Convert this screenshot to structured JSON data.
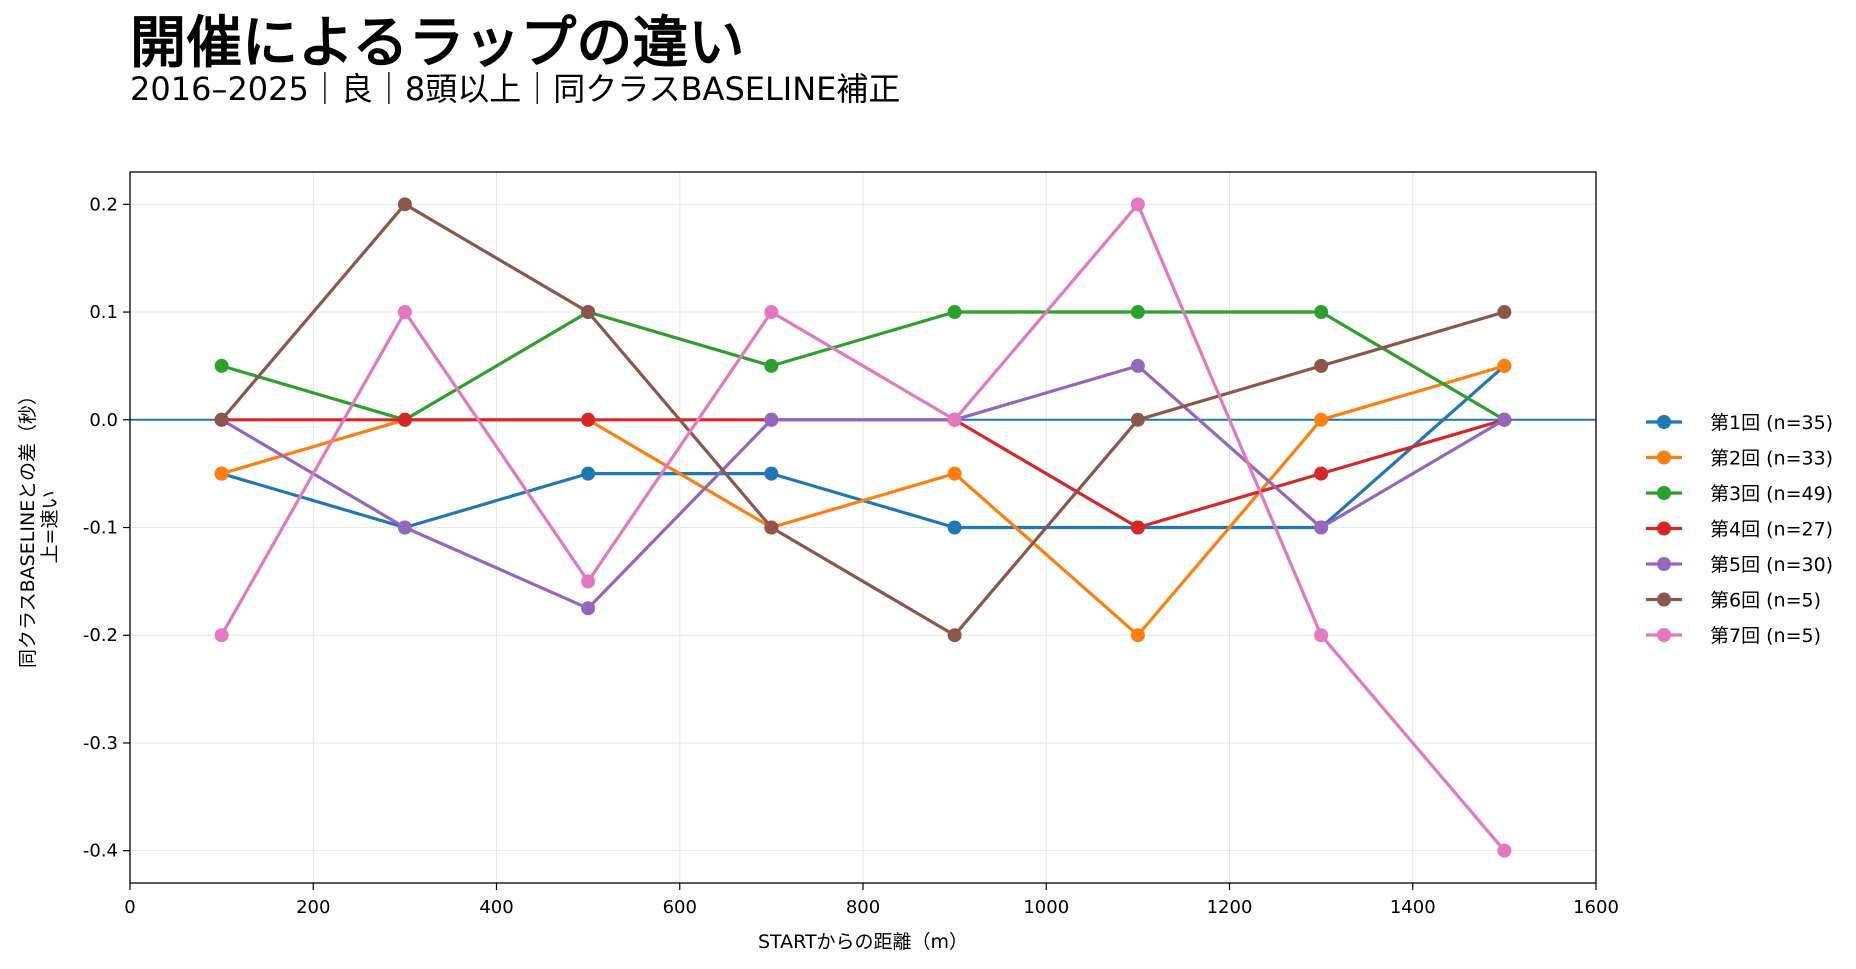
{
  "title": "開催によるラップの違い",
  "subtitle": "2016–2025｜良｜8頭以上｜同クラスBASELINE補正",
  "chart_data": {
    "type": "line",
    "xlabel": "STARTからの距離（m）",
    "ylabel": "同クラスBASELINEとの差（秒）",
    "ylabel2": "上=速い",
    "xlim": [
      0,
      1600
    ],
    "ylim": [
      -0.43,
      0.23
    ],
    "xticks": [
      0,
      200,
      400,
      600,
      800,
      1000,
      1200,
      1400,
      1600
    ],
    "yticks": [
      -0.4,
      -0.3,
      -0.2,
      -0.1,
      0.0,
      0.1,
      0.2
    ],
    "ytick_labels": [
      "-0.4",
      "-0.3",
      "-0.2",
      "-0.1",
      "0.0",
      "0.1",
      "0.2"
    ],
    "grid": true,
    "reference_line": 0.0,
    "legend_position": "right",
    "x": [
      100,
      300,
      500,
      700,
      900,
      1100,
      1300,
      1500
    ],
    "series": [
      {
        "name": "第1回 (n=35)",
        "color": "#1f77b4",
        "values": [
          -0.05,
          -0.1,
          -0.05,
          -0.05,
          -0.1,
          -0.1,
          -0.1,
          0.05
        ]
      },
      {
        "name": "第2回 (n=33)",
        "color": "#ff7f0e",
        "values": [
          -0.05,
          0.0,
          0.0,
          -0.1,
          -0.05,
          -0.2,
          0.0,
          0.05
        ]
      },
      {
        "name": "第3回 (n=49)",
        "color": "#2ca02c",
        "values": [
          0.05,
          0.0,
          0.1,
          0.05,
          0.1,
          0.1,
          0.1,
          0.0
        ]
      },
      {
        "name": "第4回 (n=27)",
        "color": "#d62728",
        "values": [
          0.0,
          0.0,
          0.0,
          0.0,
          0.0,
          -0.1,
          -0.05,
          0.0
        ]
      },
      {
        "name": "第5回 (n=30)",
        "color": "#9467bd",
        "values": [
          0.0,
          -0.1,
          -0.175,
          0.0,
          0.0,
          0.05,
          -0.1,
          0.0
        ]
      },
      {
        "name": "第6回 (n=5)",
        "color": "#8c564b",
        "values": [
          0.0,
          0.2,
          0.1,
          -0.1,
          -0.2,
          0.0,
          0.05,
          0.1
        ]
      },
      {
        "name": "第7回 (n=5)",
        "color": "#e377c2",
        "values": [
          -0.2,
          0.1,
          -0.15,
          0.1,
          0.0,
          0.2,
          -0.2,
          -0.4
        ]
      }
    ]
  }
}
